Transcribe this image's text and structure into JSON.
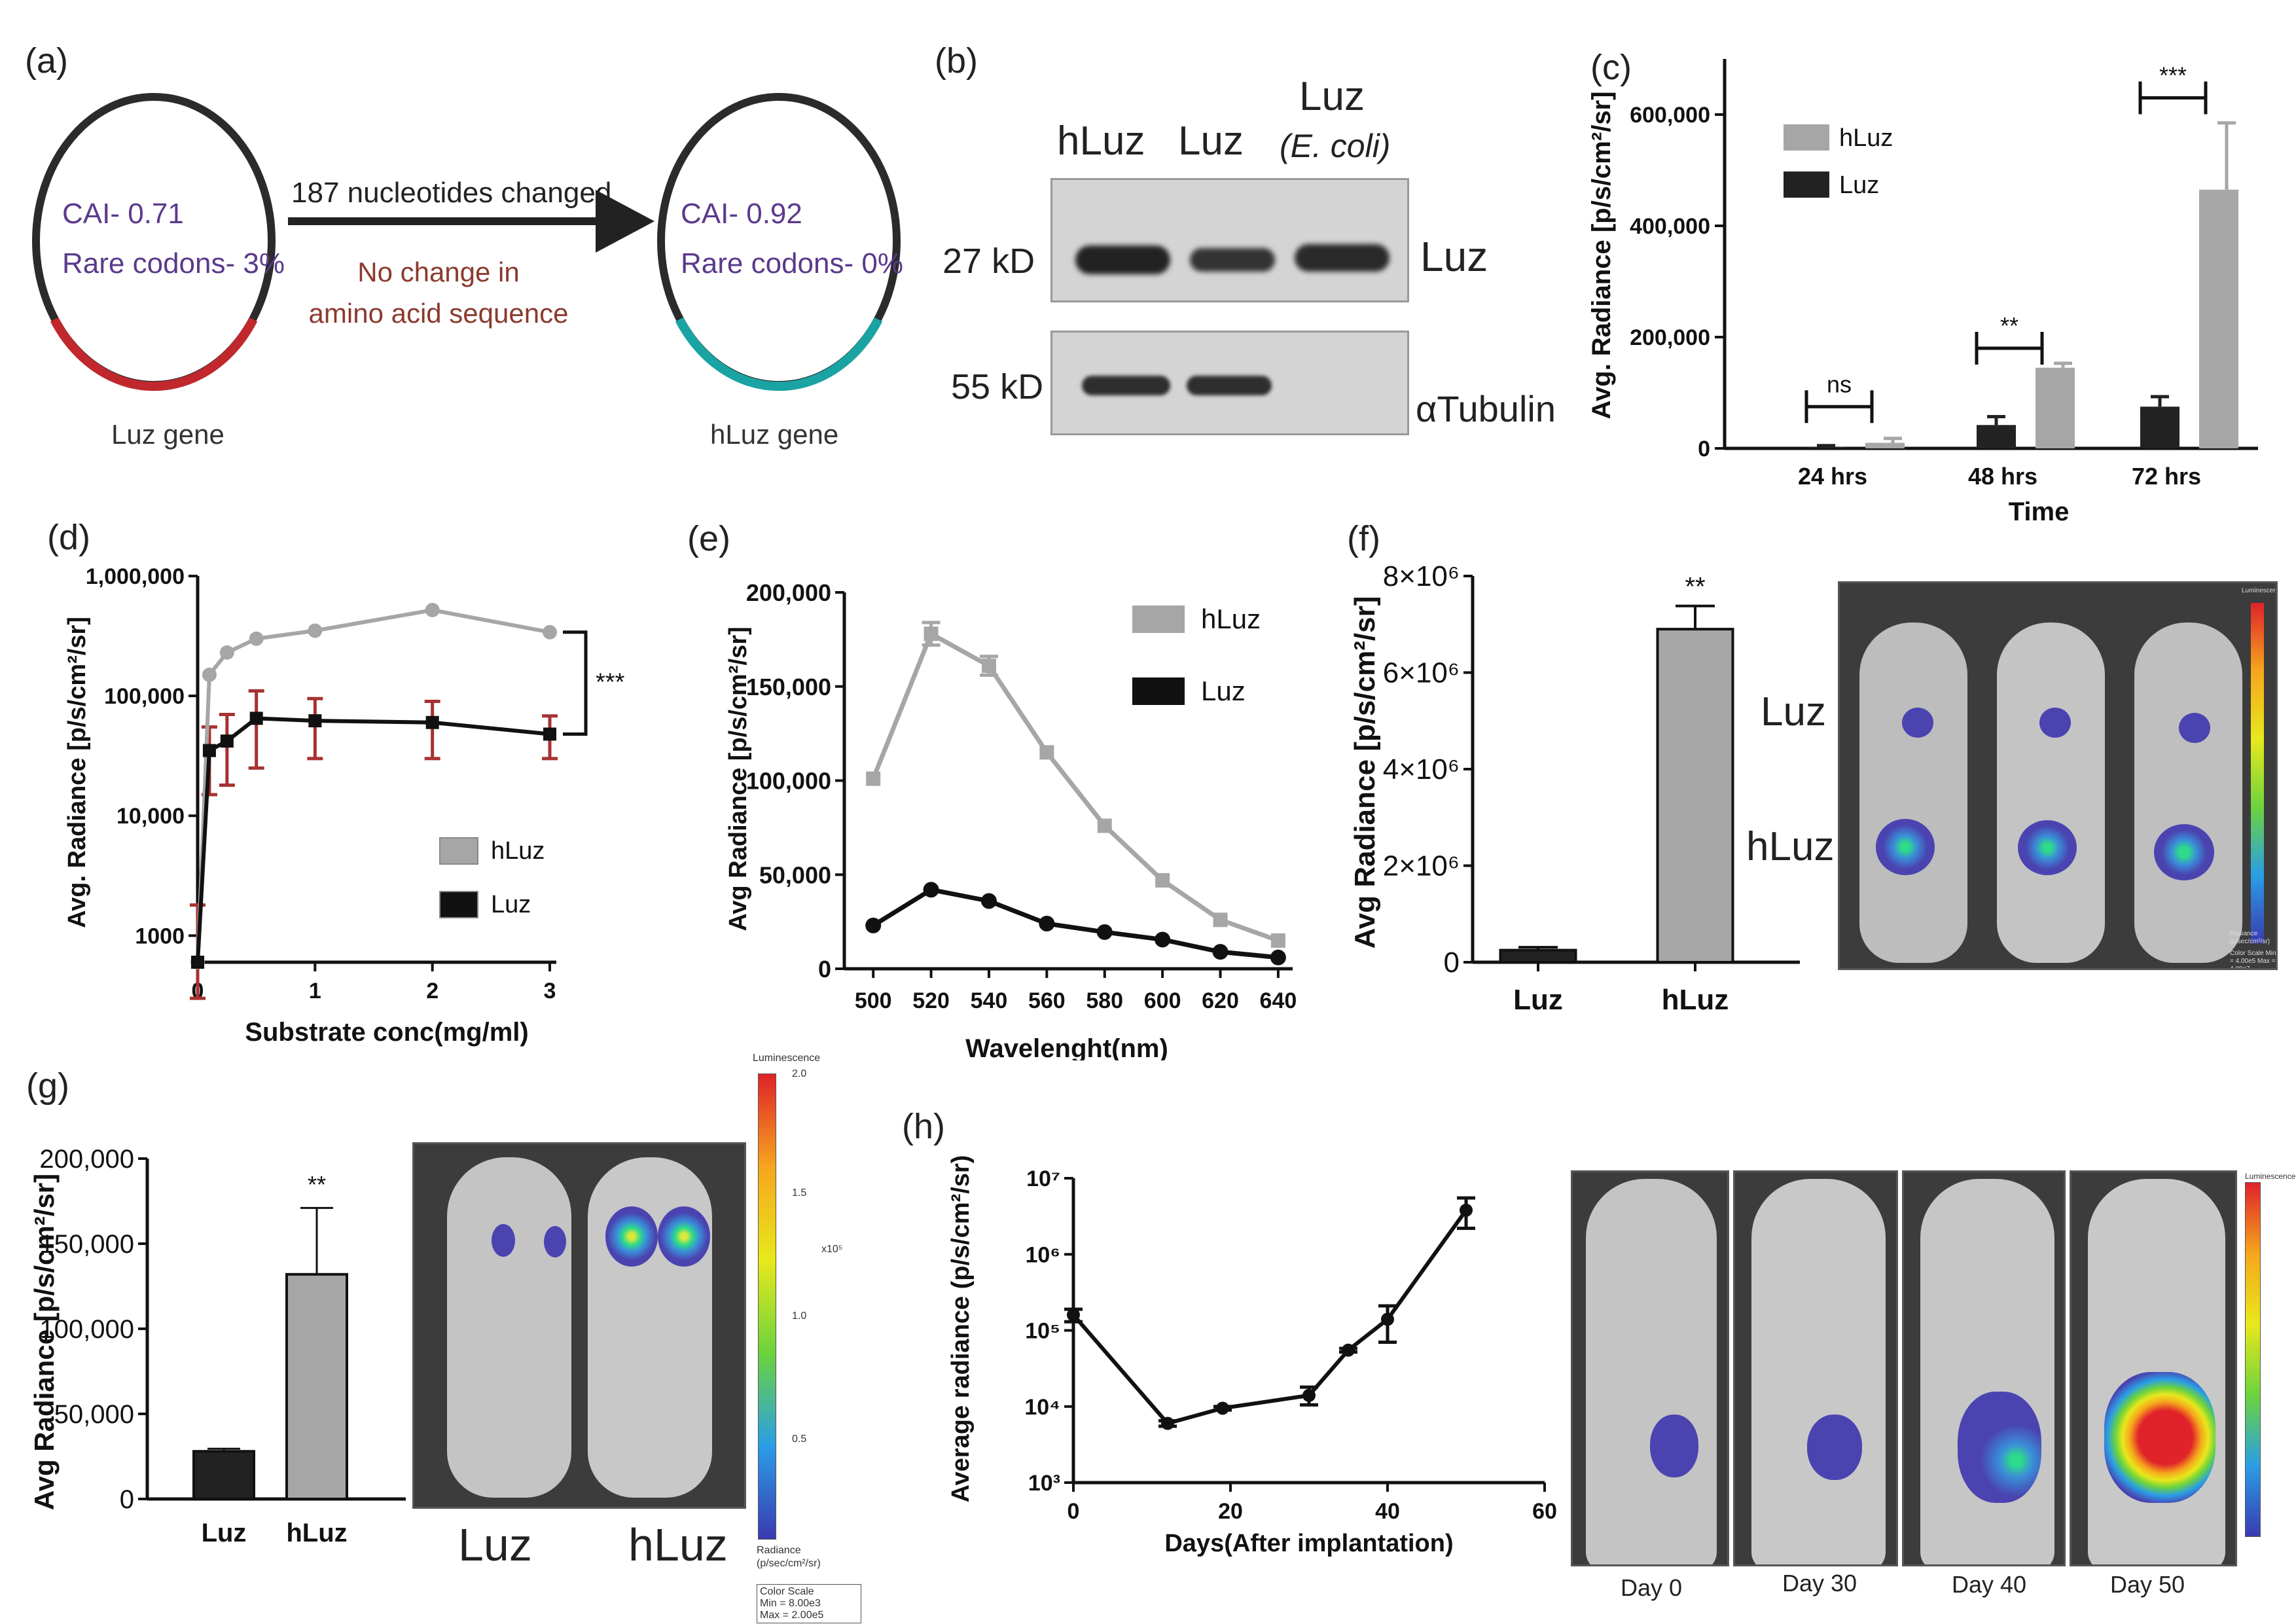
{
  "panels": {
    "a": {
      "label": "(a)",
      "left_plasmid": {
        "cai": "CAI- 0.71",
        "rare": "Rare codons- 3%",
        "caption": "Luz gene"
      },
      "right_plasmid": {
        "cai": "CAI- 0.92",
        "rare": "Rare codons- 0%",
        "caption": "hLuz gene"
      },
      "arrow_top": "187 nucleotides changed",
      "arrow_bottom_1": "No change in",
      "arrow_bottom_2": "amino acid sequence",
      "colors": {
        "plasmid_text": "#5b3a8c",
        "arrow_note": "#8b3a2e",
        "luz_segment": "#c0282d",
        "hluz_segment": "#1aa3a3"
      }
    },
    "b": {
      "label": "(b)",
      "lanes": [
        "hLuz",
        "Luz",
        "Luz"
      ],
      "lane3_sub": "(E. coli)",
      "mw_top": "27 kD",
      "mw_bottom": "55 kD",
      "band_top": "Luz",
      "band_bottom": "αTubulin"
    },
    "c": {
      "label": "(c)"
    },
    "d": {
      "label": "(d)"
    },
    "e": {
      "label": "(e)"
    },
    "f": {
      "label": "(f)",
      "img_luz": "Luz",
      "img_hluz": "hLuz",
      "scale_title": "Luminescence",
      "scale_unit": "Radiance (p/sec/cm²/sr)",
      "scale_minmax": "Color Scale Min = 4.00e5 Max = 4.00e7"
    },
    "g": {
      "label": "(g)",
      "img_luz": "Luz",
      "img_hluz": "hLuz",
      "scale_title": "Luminescence",
      "scale_ticks": [
        "2.0",
        "1.5",
        "1.0",
        "0.5"
      ],
      "scale_exp": "x10⁵",
      "scale_unit_1": "Radiance",
      "scale_unit_2": "(p/sec/cm²/sr)",
      "scale_box_1": "Color Scale",
      "scale_box_2": "Min = 8.00e3",
      "scale_box_3": "Max = 2.00e5"
    },
    "h": {
      "label": "(h)",
      "days": [
        "Day 0",
        "Day 30",
        "Day 40",
        "Day 50"
      ],
      "scale_title": "Luminescence"
    }
  },
  "chart_data": [
    {
      "id": "c",
      "type": "bar",
      "xlabel": "Time",
      "ylabel": "Avg. Radiance [p/s/cm²/sr]",
      "categories": [
        "24 hrs",
        "48 hrs",
        "72 hrs"
      ],
      "ylim": [
        0,
        700000
      ],
      "yticks": [
        "0",
        "200,000",
        "400,000",
        "600,000"
      ],
      "series": [
        {
          "name": "Luz",
          "color": "#222222",
          "values": [
            3000,
            42000,
            75000
          ],
          "errors": [
            2000,
            15000,
            18000
          ]
        },
        {
          "name": "hLuz",
          "color": "#a6a6a6",
          "values": [
            10000,
            145000,
            465000
          ],
          "errors": [
            8000,
            8000,
            120000
          ]
        }
      ],
      "significance": [
        "ns",
        "**",
        "***"
      ],
      "legend": "top-left"
    },
    {
      "id": "d",
      "type": "line",
      "xlabel": "Substrate conc(mg/ml)",
      "ylabel": "Avg. Radiance [p/s/cm²/sr]",
      "yscale": "log",
      "ylim": [
        600,
        1000000
      ],
      "xlim": [
        0,
        3
      ],
      "xticks": [
        "0",
        "1",
        "2",
        "3"
      ],
      "yticks": [
        "1000",
        "10,000",
        "100,000",
        "1,000,000"
      ],
      "series": [
        {
          "name": "hLuz",
          "color": "#a6a6a6",
          "x": [
            0,
            0.1,
            0.25,
            0.5,
            1,
            2,
            3
          ],
          "y": [
            600,
            150000,
            230000,
            300000,
            350000,
            520000,
            340000
          ]
        },
        {
          "name": "Luz",
          "color": "#111111",
          "x": [
            0,
            0.1,
            0.25,
            0.5,
            1,
            2,
            3
          ],
          "y": [
            600,
            35000,
            42000,
            65000,
            62000,
            60000,
            48000
          ],
          "err_low": [
            300,
            15000,
            18000,
            25000,
            30000,
            30000,
            30000
          ],
          "err_high": [
            1800,
            55000,
            70000,
            110000,
            95000,
            90000,
            68000
          ]
        }
      ],
      "significance": "***",
      "legend": "bottom-right"
    },
    {
      "id": "e",
      "type": "line",
      "xlabel": "Wavelenght(nm)",
      "ylabel": "Avg Radiance [p/s/cm²/sr]",
      "xlim": [
        490,
        645
      ],
      "ylim": [
        0,
        200000
      ],
      "xticks": [
        "500",
        "520",
        "540",
        "560",
        "580",
        "600",
        "620",
        "640"
      ],
      "yticks": [
        "0",
        "50,000",
        "100,000",
        "150,000",
        "200,000"
      ],
      "series": [
        {
          "name": "hLuz",
          "color": "#a6a6a6",
          "x": [
            500,
            520,
            540,
            560,
            580,
            600,
            620,
            640
          ],
          "y": [
            101000,
            178000,
            161000,
            115000,
            76000,
            47000,
            26000,
            15000
          ]
        },
        {
          "name": "Luz",
          "color": "#111111",
          "x": [
            500,
            520,
            540,
            560,
            580,
            600,
            620,
            640
          ],
          "y": [
            23000,
            42000,
            36000,
            24000,
            19500,
            15500,
            9000,
            6000
          ]
        }
      ],
      "legend": "top-right"
    },
    {
      "id": "f",
      "type": "bar",
      "ylabel": "Avg Radiance [p/s/cm²/sr]",
      "categories": [
        "Luz",
        "hLuz"
      ],
      "ylim": [
        0,
        8000000
      ],
      "yticks": [
        "0",
        "2×10⁶",
        "4×10⁶",
        "6×10⁶",
        "8×10⁶"
      ],
      "series": [
        {
          "values": [
            250000,
            6900000
          ],
          "errors": [
            60000,
            480000
          ],
          "colors": [
            "#222222",
            "#a6a6a6"
          ]
        }
      ],
      "significance": "**"
    },
    {
      "id": "g",
      "type": "bar",
      "ylabel": "Avg Radiance [p/s/cm²/sr]",
      "categories": [
        "Luz",
        "hLuz"
      ],
      "ylim": [
        0,
        200000
      ],
      "yticks": [
        "0",
        "50,000",
        "100,000",
        "150,000",
        "200,000"
      ],
      "series": [
        {
          "values": [
            28000,
            132000
          ],
          "errors": [
            1500,
            39000
          ],
          "colors": [
            "#222222",
            "#a6a6a6"
          ]
        }
      ],
      "significance": "**"
    },
    {
      "id": "h",
      "type": "line",
      "xlabel": "Days(After implantation)",
      "ylabel": "Average radiance (p/s/cm²/sr)",
      "yscale": "log",
      "ylim": [
        1000,
        10000000
      ],
      "xlim": [
        0,
        60
      ],
      "xticks": [
        "0",
        "20",
        "40",
        "60"
      ],
      "yticks": [
        "10³",
        "10⁴",
        "10⁵",
        "10⁶",
        "10⁷"
      ],
      "series": [
        {
          "color": "#111111",
          "x": [
            0,
            12,
            19,
            30,
            35,
            40,
            50
          ],
          "y": [
            160000,
            6000,
            9500,
            14000,
            55000,
            140000,
            3800000
          ],
          "err_low": [
            130000,
            5500,
            9000,
            10500,
            52000,
            70000,
            2200000
          ],
          "err_high": [
            190000,
            6500,
            10000,
            18000,
            58000,
            210000,
            5500000
          ]
        }
      ]
    }
  ]
}
